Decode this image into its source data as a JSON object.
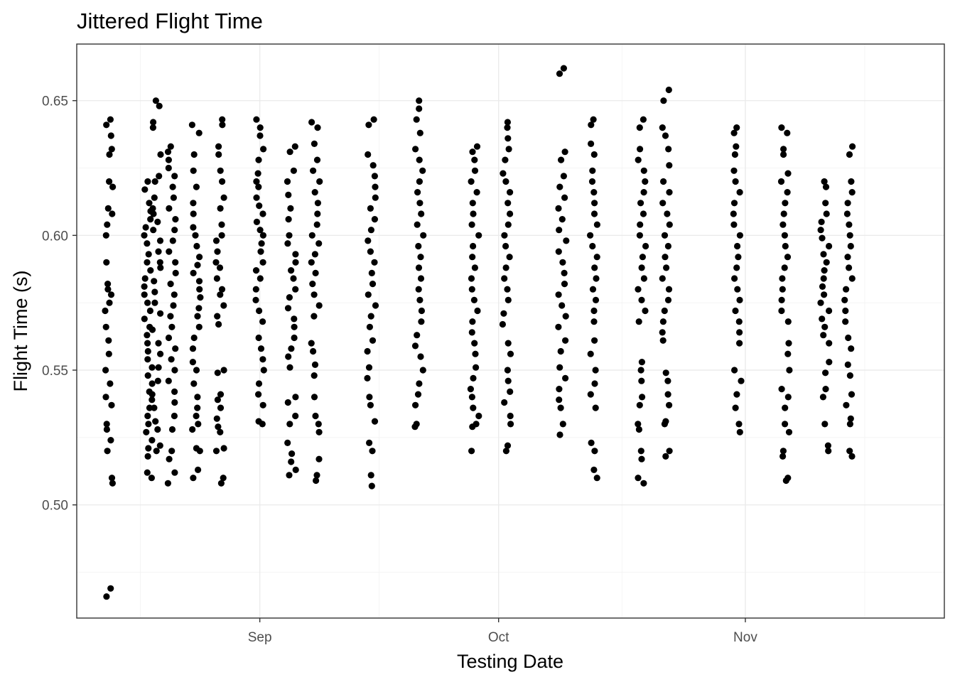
{
  "chart_data": {
    "type": "scatter",
    "title": "Jittered Flight Time",
    "xlabel": "Testing Date",
    "ylabel": "Flight Time (s)",
    "x_type": "date",
    "xlim": [
      "2021-08-09",
      "2021-11-26"
    ],
    "ylim": [
      0.458,
      0.671
    ],
    "x_ticks": [
      {
        "date": "2021-09-01",
        "label": "Sep"
      },
      {
        "date": "2021-10-01",
        "label": "Oct"
      },
      {
        "date": "2021-11-01",
        "label": "Nov"
      }
    ],
    "y_ticks": [
      {
        "value": 0.5,
        "label": "0.50"
      },
      {
        "value": 0.55,
        "label": "0.55"
      },
      {
        "value": 0.6,
        "label": "0.60"
      },
      {
        "value": 0.65,
        "label": "0.65"
      }
    ],
    "grid": true,
    "point_color": "#000000",
    "jitter": "horizontal",
    "series": [
      {
        "date": "2021-08-13",
        "values": [
          0.643,
          0.641,
          0.637,
          0.632,
          0.63,
          0.62,
          0.618,
          0.61,
          0.608,
          0.604,
          0.6,
          0.59,
          0.582,
          0.58,
          0.578,
          0.575,
          0.572,
          0.566,
          0.561,
          0.556,
          0.55,
          0.545,
          0.54,
          0.537,
          0.53,
          0.528,
          0.524,
          0.52,
          0.51,
          0.508,
          0.469,
          0.466
        ]
      },
      {
        "date": "2021-08-18",
        "values": [
          0.62,
          0.617,
          0.612,
          0.609,
          0.606,
          0.603,
          0.6,
          0.597,
          0.593,
          0.59,
          0.587,
          0.584,
          0.581,
          0.578,
          0.575,
          0.572,
          0.569,
          0.566,
          0.563,
          0.56,
          0.557,
          0.554,
          0.551,
          0.548,
          0.545,
          0.542,
          0.539,
          0.536,
          0.533,
          0.53,
          0.527,
          0.524,
          0.521,
          0.518,
          0.512,
          0.51
        ]
      },
      {
        "date": "2021-08-19",
        "values": [
          0.65,
          0.648,
          0.642,
          0.64,
          0.63,
          0.622,
          0.62,
          0.614,
          0.61,
          0.608,
          0.605,
          0.602,
          0.598,
          0.594,
          0.59,
          0.588,
          0.583,
          0.579,
          0.575,
          0.571,
          0.565,
          0.56,
          0.556,
          0.551,
          0.546,
          0.541,
          0.536,
          0.531,
          0.528,
          0.522,
          0.52
        ]
      },
      {
        "date": "2021-08-21",
        "values": [
          0.633,
          0.631,
          0.628,
          0.625,
          0.622,
          0.618,
          0.614,
          0.61,
          0.606,
          0.602,
          0.598,
          0.594,
          0.59,
          0.586,
          0.582,
          0.578,
          0.574,
          0.57,
          0.566,
          0.562,
          0.558,
          0.554,
          0.55,
          0.546,
          0.542,
          0.538,
          0.533,
          0.528,
          0.52,
          0.517,
          0.512,
          0.508
        ]
      },
      {
        "date": "2021-08-24",
        "values": [
          0.641,
          0.638,
          0.63,
          0.624,
          0.618,
          0.612,
          0.608,
          0.603,
          0.6,
          0.596,
          0.592,
          0.589,
          0.586,
          0.583,
          0.58,
          0.577,
          0.573,
          0.57,
          0.566,
          0.562,
          0.558,
          0.553,
          0.55,
          0.545,
          0.54,
          0.536,
          0.533,
          0.53,
          0.528,
          0.521,
          0.52,
          0.513,
          0.51
        ]
      },
      {
        "date": "2021-08-27",
        "values": [
          0.643,
          0.641,
          0.633,
          0.63,
          0.624,
          0.62,
          0.614,
          0.61,
          0.604,
          0.6,
          0.598,
          0.594,
          0.59,
          0.588,
          0.584,
          0.58,
          0.578,
          0.574,
          0.57,
          0.567,
          0.55,
          0.549,
          0.541,
          0.539,
          0.536,
          0.532,
          0.529,
          0.527,
          0.521,
          0.52,
          0.51,
          0.508
        ]
      },
      {
        "date": "2021-09-01",
        "values": [
          0.643,
          0.64,
          0.637,
          0.632,
          0.628,
          0.623,
          0.62,
          0.618,
          0.614,
          0.611,
          0.608,
          0.605,
          0.602,
          0.6,
          0.597,
          0.594,
          0.59,
          0.587,
          0.584,
          0.58,
          0.576,
          0.572,
          0.568,
          0.562,
          0.558,
          0.554,
          0.55,
          0.545,
          0.541,
          0.537,
          0.531,
          0.53
        ]
      },
      {
        "date": "2021-09-05",
        "values": [
          0.633,
          0.631,
          0.624,
          0.62,
          0.615,
          0.61,
          0.606,
          0.6,
          0.597,
          0.593,
          0.59,
          0.587,
          0.584,
          0.58,
          0.577,
          0.573,
          0.569,
          0.566,
          0.562,
          0.558,
          0.555,
          0.551,
          0.54,
          0.538,
          0.533,
          0.53,
          0.523,
          0.519,
          0.516,
          0.513,
          0.511
        ]
      },
      {
        "date": "2021-09-08",
        "values": [
          0.642,
          0.64,
          0.634,
          0.628,
          0.624,
          0.62,
          0.616,
          0.612,
          0.608,
          0.604,
          0.6,
          0.597,
          0.593,
          0.59,
          0.586,
          0.582,
          0.578,
          0.574,
          0.57,
          0.56,
          0.557,
          0.552,
          0.548,
          0.54,
          0.533,
          0.53,
          0.527,
          0.517,
          0.511,
          0.509
        ]
      },
      {
        "date": "2021-09-15",
        "values": [
          0.643,
          0.641,
          0.63,
          0.626,
          0.622,
          0.618,
          0.614,
          0.61,
          0.606,
          0.602,
          0.598,
          0.594,
          0.59,
          0.586,
          0.582,
          0.578,
          0.574,
          0.57,
          0.566,
          0.561,
          0.557,
          0.551,
          0.547,
          0.54,
          0.537,
          0.531,
          0.523,
          0.52,
          0.511,
          0.507
        ]
      },
      {
        "date": "2021-09-21",
        "values": [
          0.65,
          0.647,
          0.643,
          0.638,
          0.632,
          0.628,
          0.624,
          0.62,
          0.616,
          0.612,
          0.608,
          0.604,
          0.6,
          0.596,
          0.592,
          0.588,
          0.584,
          0.58,
          0.576,
          0.572,
          0.568,
          0.563,
          0.559,
          0.555,
          0.55,
          0.545,
          0.541,
          0.537,
          0.53,
          0.529
        ]
      },
      {
        "date": "2021-09-28",
        "values": [
          0.633,
          0.631,
          0.628,
          0.624,
          0.62,
          0.616,
          0.612,
          0.608,
          0.604,
          0.6,
          0.596,
          0.592,
          0.588,
          0.584,
          0.58,
          0.576,
          0.572,
          0.568,
          0.564,
          0.56,
          0.556,
          0.551,
          0.547,
          0.543,
          0.54,
          0.536,
          0.533,
          0.53,
          0.529,
          0.52
        ]
      },
      {
        "date": "2021-10-02",
        "values": [
          0.642,
          0.64,
          0.636,
          0.632,
          0.628,
          0.623,
          0.62,
          0.616,
          0.612,
          0.608,
          0.604,
          0.6,
          0.596,
          0.592,
          0.588,
          0.584,
          0.58,
          0.576,
          0.571,
          0.567,
          0.56,
          0.556,
          0.55,
          0.546,
          0.542,
          0.538,
          0.533,
          0.53,
          0.522,
          0.52
        ]
      },
      {
        "date": "2021-10-09",
        "values": [
          0.662,
          0.66,
          0.631,
          0.628,
          0.622,
          0.618,
          0.614,
          0.61,
          0.606,
          0.602,
          0.598,
          0.594,
          0.59,
          0.586,
          0.582,
          0.578,
          0.574,
          0.57,
          0.566,
          0.561,
          0.557,
          0.551,
          0.547,
          0.543,
          0.539,
          0.536,
          0.53,
          0.526
        ]
      },
      {
        "date": "2021-10-13",
        "values": [
          0.643,
          0.641,
          0.634,
          0.63,
          0.624,
          0.62,
          0.616,
          0.612,
          0.608,
          0.604,
          0.6,
          0.596,
          0.592,
          0.588,
          0.584,
          0.58,
          0.576,
          0.572,
          0.568,
          0.561,
          0.556,
          0.55,
          0.545,
          0.541,
          0.536,
          0.523,
          0.52,
          0.513,
          0.51
        ]
      },
      {
        "date": "2021-10-19",
        "values": [
          0.643,
          0.64,
          0.632,
          0.628,
          0.624,
          0.62,
          0.616,
          0.612,
          0.608,
          0.604,
          0.6,
          0.596,
          0.592,
          0.588,
          0.584,
          0.58,
          0.576,
          0.572,
          0.568,
          0.553,
          0.55,
          0.546,
          0.54,
          0.537,
          0.53,
          0.528,
          0.52,
          0.517,
          0.51,
          0.508
        ]
      },
      {
        "date": "2021-10-22",
        "values": [
          0.654,
          0.65,
          0.64,
          0.637,
          0.632,
          0.626,
          0.62,
          0.616,
          0.612,
          0.608,
          0.604,
          0.6,
          0.596,
          0.592,
          0.588,
          0.584,
          0.58,
          0.576,
          0.572,
          0.568,
          0.564,
          0.561,
          0.549,
          0.546,
          0.541,
          0.537,
          0.531,
          0.53,
          0.52,
          0.518
        ]
      },
      {
        "date": "2021-10-31",
        "values": [
          0.64,
          0.638,
          0.633,
          0.63,
          0.624,
          0.62,
          0.616,
          0.612,
          0.608,
          0.604,
          0.6,
          0.596,
          0.592,
          0.588,
          0.584,
          0.58,
          0.576,
          0.572,
          0.568,
          0.564,
          0.56,
          0.55,
          0.546,
          0.541,
          0.536,
          0.53,
          0.527
        ]
      },
      {
        "date": "2021-11-06",
        "values": [
          0.64,
          0.638,
          0.632,
          0.63,
          0.623,
          0.62,
          0.616,
          0.612,
          0.608,
          0.604,
          0.6,
          0.596,
          0.592,
          0.588,
          0.584,
          0.58,
          0.576,
          0.572,
          0.568,
          0.56,
          0.556,
          0.55,
          0.543,
          0.54,
          0.536,
          0.53,
          0.527,
          0.52,
          0.518,
          0.51,
          0.509
        ]
      },
      {
        "date": "2021-11-11",
        "values": [
          0.62,
          0.618,
          0.612,
          0.608,
          0.605,
          0.602,
          0.599,
          0.596,
          0.593,
          0.59,
          0.587,
          0.584,
          0.581,
          0.578,
          0.575,
          0.572,
          0.569,
          0.566,
          0.563,
          0.56,
          0.553,
          0.549,
          0.543,
          0.54,
          0.53,
          0.522,
          0.52
        ]
      },
      {
        "date": "2021-11-14",
        "values": [
          0.633,
          0.63,
          0.62,
          0.616,
          0.612,
          0.608,
          0.604,
          0.6,
          0.596,
          0.592,
          0.588,
          0.584,
          0.58,
          0.576,
          0.572,
          0.568,
          0.562,
          0.558,
          0.552,
          0.548,
          0.541,
          0.537,
          0.532,
          0.53,
          0.52,
          0.518
        ]
      }
    ]
  }
}
